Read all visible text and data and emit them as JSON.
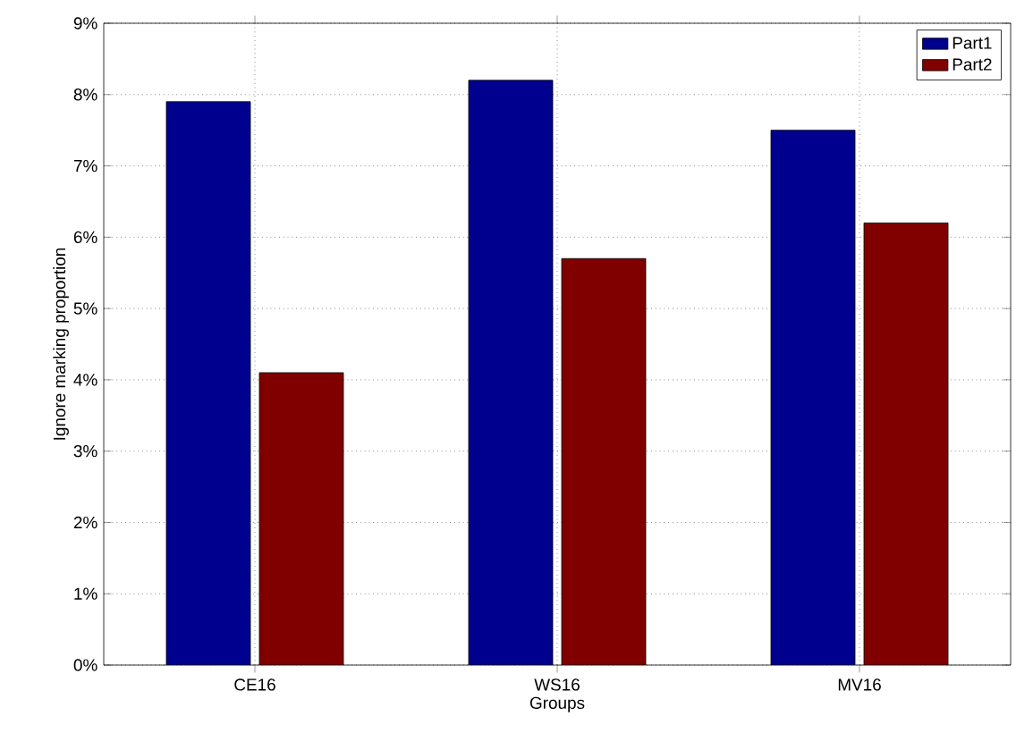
{
  "chart_data": {
    "type": "bar",
    "xlabel": "Groups",
    "ylabel": "Ignore marking proportion",
    "categories": [
      "CE16",
      "WS16",
      "MV16"
    ],
    "series": [
      {
        "name": "Part1",
        "color": "#00008f",
        "values": [
          7.9,
          8.2,
          7.5
        ]
      },
      {
        "name": "Part2",
        "color": "#800000",
        "values": [
          4.1,
          5.7,
          6.2
        ]
      }
    ],
    "ylim": [
      0,
      9
    ],
    "yticks": [
      {
        "value": 0,
        "label": "0%"
      },
      {
        "value": 1,
        "label": "1%"
      },
      {
        "value": 2,
        "label": "2%"
      },
      {
        "value": 3,
        "label": "3%"
      },
      {
        "value": 4,
        "label": "4%"
      },
      {
        "value": 5,
        "label": "5%"
      },
      {
        "value": 6,
        "label": "6%"
      },
      {
        "value": 7,
        "label": "7%"
      },
      {
        "value": 8,
        "label": "8%"
      },
      {
        "value": 9,
        "label": "9%"
      }
    ],
    "grid": true,
    "legend": "top right"
  }
}
